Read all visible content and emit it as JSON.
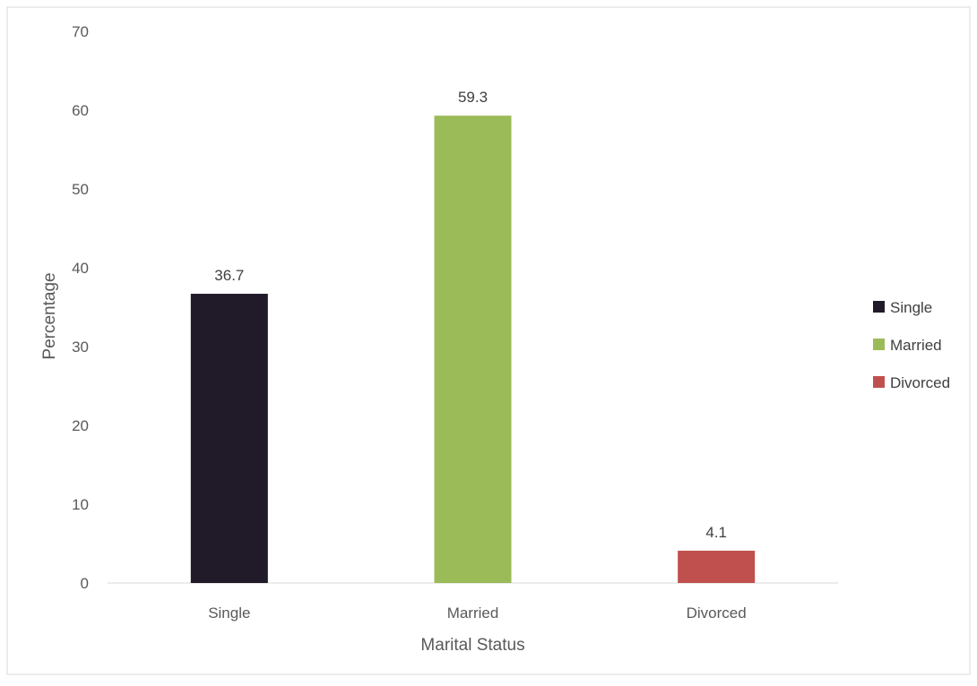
{
  "chart_data": {
    "type": "bar",
    "categories": [
      "Single",
      "Married",
      "Divorced"
    ],
    "values": [
      36.7,
      59.3,
      4.1
    ],
    "data_labels": [
      "36.7",
      "59.3",
      "4.1"
    ],
    "colors": [
      "#211a28",
      "#9bbb59",
      "#c0504d"
    ],
    "xlabel": "Marital Status",
    "ylabel": "Percentage",
    "ylim": [
      0,
      70
    ],
    "yticks": [
      0,
      10,
      20,
      30,
      40,
      50,
      60,
      70
    ],
    "ytick_labels": [
      "0",
      "10",
      "20",
      "30",
      "40",
      "50",
      "60",
      "70"
    ],
    "grid": false,
    "legend": {
      "position": "right",
      "entries": [
        "Single",
        "Married",
        "Divorced"
      ]
    }
  }
}
